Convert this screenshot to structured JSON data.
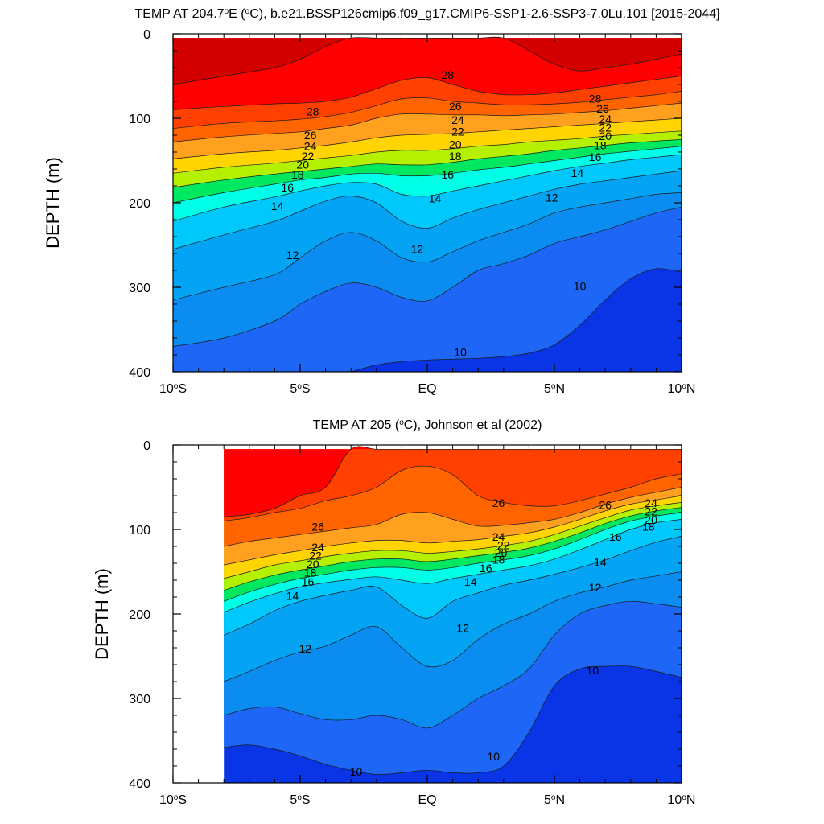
{
  "chart_data": [
    {
      "type": "heatmap",
      "title": "TEMP AT 204.7°E (°C), b.e21.BSSP126cmip6.f09_g17.CMIP6-SSP1-2.6-SSP3-7.0Lu.101 [2015-2044]",
      "title_parts": {
        "pre": "TEMP AT 204.7",
        "deg1": "o",
        "mid": "E (",
        "deg2": "o",
        "post": "C), b.e21.BSSP126cmip6.f09_g17.CMIP6-SSP1-2.6-SSP3-7.0Lu.101 [2015-2044]"
      },
      "ylabel": "DEPTH (m)",
      "xlim": [
        -10,
        10
      ],
      "ylim": [
        0,
        400
      ],
      "y_reversed": true,
      "x_ticks": [
        {
          "v": -10,
          "num": "10",
          "hemi": "S"
        },
        {
          "v": -5,
          "num": "5",
          "hemi": "S"
        },
        {
          "v": 0,
          "num": "EQ",
          "hemi": ""
        },
        {
          "v": 5,
          "num": "5",
          "hemi": "N"
        },
        {
          "v": 10,
          "num": "10",
          "hemi": "N"
        }
      ],
      "y_ticks": [
        "0",
        "100",
        "200",
        "300",
        "400"
      ],
      "data_x_range": [
        -10,
        10
      ],
      "data_depth_top": 5,
      "levels": [
        8,
        9,
        10,
        11,
        12,
        13,
        14,
        15,
        16,
        17,
        18,
        19,
        20,
        21,
        22,
        23,
        24,
        25,
        26,
        27,
        28,
        29,
        30
      ],
      "isotherms_depth": {
        "lat": [
          -10,
          -8,
          -6,
          -5,
          -4,
          -3,
          -2,
          -1,
          0,
          1,
          2,
          3,
          4,
          5,
          6,
          7,
          8,
          9,
          10
        ],
        "t10": [
          460,
          458,
          440,
          420,
          410,
          400,
          392,
          388,
          386,
          385,
          384,
          382,
          378,
          368,
          345,
          315,
          290,
          278,
          282
        ],
        "t11": [
          370,
          360,
          340,
          320,
          305,
          295,
          300,
          312,
          316,
          300,
          280,
          272,
          262,
          248,
          240,
          232,
          222,
          212,
          205
        ],
        "t12": [
          315,
          300,
          285,
          265,
          245,
          235,
          245,
          265,
          270,
          258,
          245,
          235,
          225,
          212,
          205,
          200,
          195,
          190,
          188
        ],
        "t14": [
          255,
          238,
          222,
          210,
          198,
          192,
          200,
          222,
          230,
          218,
          208,
          200,
          192,
          184,
          178,
          174,
          170,
          166,
          162
        ],
        "t16": [
          222,
          205,
          193,
          186,
          180,
          176,
          178,
          190,
          192,
          186,
          180,
          174,
          168,
          162,
          157,
          153,
          149,
          146,
          143
        ],
        "t18": [
          200,
          188,
          178,
          173,
          170,
          166,
          165,
          168,
          168,
          165,
          161,
          158,
          154,
          150,
          146,
          142,
          139,
          136,
          133
        ],
        "t20": [
          182,
          173,
          166,
          163,
          160,
          157,
          154,
          155,
          155,
          152,
          148,
          145,
          142,
          138,
          135,
          132,
          129,
          127,
          125
        ],
        "t22": [
          165,
          158,
          153,
          150,
          147,
          144,
          140,
          138,
          138,
          136,
          133,
          131,
          128,
          126,
          124,
          121,
          119,
          117,
          115
        ],
        "t24": [
          148,
          142,
          138,
          135,
          132,
          128,
          123,
          120,
          119,
          118,
          116,
          114,
          112,
          110,
          108,
          106,
          104,
          102,
          100
        ],
        "t26": [
          128,
          122,
          118,
          116,
          112,
          108,
          100,
          95,
          95,
          96,
          96,
          97,
          96,
          95,
          93,
          91,
          88,
          85,
          82
        ],
        "t27": [
          112,
          106,
          103,
          101,
          98,
          93,
          85,
          77,
          76,
          80,
          82,
          84,
          84,
          83,
          81,
          78,
          75,
          72,
          68
        ],
        "t28": [
          90,
          86,
          83,
          82,
          80,
          75,
          65,
          55,
          52,
          60,
          68,
          72,
          72,
          70,
          66,
          62,
          58,
          54,
          50
        ],
        "t29": [
          60,
          50,
          40,
          30,
          15,
          5,
          5,
          5,
          5,
          5,
          5,
          5,
          20,
          36,
          44,
          40,
          36,
          30,
          24
        ]
      },
      "contour_labels": [
        {
          "text": "28",
          "lon": -4.5,
          "depth": 93
        },
        {
          "text": "26",
          "lon": -4.6,
          "depth": 121
        },
        {
          "text": "24",
          "lon": -4.6,
          "depth": 134
        },
        {
          "text": "22",
          "lon": -4.7,
          "depth": 146
        },
        {
          "text": "20",
          "lon": -4.9,
          "depth": 156
        },
        {
          "text": "18",
          "lon": -5.1,
          "depth": 168
        },
        {
          "text": "16",
          "lon": -5.5,
          "depth": 183
        },
        {
          "text": "14",
          "lon": -5.9,
          "depth": 205
        },
        {
          "text": "12",
          "lon": -5.3,
          "depth": 263
        },
        {
          "text": "28",
          "lon": 0.8,
          "depth": 50
        },
        {
          "text": "26",
          "lon": 1.1,
          "depth": 87
        },
        {
          "text": "24",
          "lon": 1.2,
          "depth": 103
        },
        {
          "text": "22",
          "lon": 1.2,
          "depth": 117
        },
        {
          "text": "20",
          "lon": 1.1,
          "depth": 132
        },
        {
          "text": "18",
          "lon": 1.1,
          "depth": 146
        },
        {
          "text": "16",
          "lon": 0.8,
          "depth": 168
        },
        {
          "text": "14",
          "lon": 0.3,
          "depth": 196
        },
        {
          "text": "12",
          "lon": -0.4,
          "depth": 256
        },
        {
          "text": "10",
          "lon": 1.3,
          "depth": 378
        },
        {
          "text": "28",
          "lon": 6.6,
          "depth": 78
        },
        {
          "text": "26",
          "lon": 6.9,
          "depth": 90
        },
        {
          "text": "24",
          "lon": 7.0,
          "depth": 102
        },
        {
          "text": "22",
          "lon": 7.0,
          "depth": 112
        },
        {
          "text": "20",
          "lon": 7.0,
          "depth": 122
        },
        {
          "text": "18",
          "lon": 6.8,
          "depth": 133
        },
        {
          "text": "16",
          "lon": 6.6,
          "depth": 147
        },
        {
          "text": "14",
          "lon": 5.9,
          "depth": 166
        },
        {
          "text": "12",
          "lon": 4.9,
          "depth": 195
        },
        {
          "text": "10",
          "lon": 6.0,
          "depth": 300
        }
      ]
    },
    {
      "type": "heatmap",
      "title": "TEMP AT 205 (°C), Johnson et al (2002)",
      "title_parts": {
        "pre": "TEMP AT 205 (",
        "deg1": "o",
        "mid": "",
        "deg2": "",
        "post": "C), Johnson et al (2002)"
      },
      "ylabel": "DEPTH (m)",
      "xlim": [
        -10,
        10
      ],
      "ylim": [
        0,
        400
      ],
      "y_reversed": true,
      "x_ticks": [
        {
          "v": -10,
          "num": "10",
          "hemi": "S"
        },
        {
          "v": -5,
          "num": "5",
          "hemi": "S"
        },
        {
          "v": 0,
          "num": "EQ",
          "hemi": ""
        },
        {
          "v": 5,
          "num": "5",
          "hemi": "N"
        },
        {
          "v": 10,
          "num": "10",
          "hemi": "N"
        }
      ],
      "y_ticks": [
        "0",
        "100",
        "200",
        "300",
        "400"
      ],
      "data_x_range": [
        -8,
        10
      ],
      "data_depth_top": 5,
      "levels": [
        8,
        9,
        10,
        11,
        12,
        13,
        14,
        15,
        16,
        17,
        18,
        19,
        20,
        21,
        22,
        23,
        24,
        25,
        26,
        27,
        28,
        29,
        30
      ],
      "isotherms_depth": {
        "lat": [
          -8,
          -7,
          -6,
          -5,
          -4,
          -3,
          -2,
          -1,
          0,
          1,
          2,
          3,
          4,
          5,
          6,
          7,
          8,
          9,
          10
        ],
        "t10": [
          358,
          355,
          360,
          368,
          378,
          385,
          390,
          388,
          385,
          388,
          388,
          380,
          340,
          285,
          265,
          262,
          262,
          268,
          275
        ],
        "t11": [
          320,
          312,
          310,
          318,
          325,
          325,
          320,
          325,
          335,
          320,
          300,
          285,
          265,
          225,
          200,
          190,
          185,
          188,
          192
        ],
        "t12": [
          280,
          268,
          255,
          245,
          238,
          225,
          215,
          240,
          262,
          255,
          230,
          212,
          200,
          185,
          175,
          168,
          160,
          155,
          150
        ],
        "t14": [
          225,
          212,
          196,
          185,
          178,
          172,
          168,
          190,
          205,
          185,
          175,
          166,
          160,
          153,
          145,
          136,
          125,
          115,
          108
        ],
        "t16": [
          198,
          186,
          176,
          168,
          163,
          159,
          156,
          160,
          164,
          158,
          153,
          148,
          143,
          135,
          124,
          112,
          100,
          92,
          88
        ],
        "t18": [
          185,
          174,
          165,
          158,
          153,
          148,
          145,
          145,
          148,
          145,
          140,
          136,
          131,
          123,
          112,
          100,
          90,
          84,
          80
        ],
        "t20": [
          172,
          162,
          154,
          148,
          143,
          138,
          135,
          135,
          138,
          135,
          131,
          127,
          122,
          114,
          104,
          93,
          84,
          78,
          74
        ],
        "t22": [
          158,
          150,
          142,
          137,
          132,
          128,
          125,
          125,
          128,
          126,
          123,
          119,
          114,
          106,
          96,
          86,
          77,
          72,
          68
        ],
        "t24": [
          142,
          136,
          130,
          125,
          120,
          116,
          113,
          113,
          116,
          114,
          112,
          108,
          104,
          97,
          88,
          78,
          70,
          65,
          60
        ],
        "t26": [
          120,
          114,
          110,
          106,
          102,
          98,
          94,
          82,
          80,
          88,
          96,
          95,
          92,
          88,
          80,
          70,
          62,
          56,
          50
        ],
        "t27": [
          90,
          86,
          80,
          75,
          66,
          60,
          50,
          30,
          25,
          35,
          60,
          68,
          72,
          72,
          66,
          58,
          50,
          40,
          34
        ],
        "t28": [
          85,
          82,
          75,
          60,
          50,
          5,
          5,
          5,
          5,
          5,
          5,
          5,
          5,
          5,
          5,
          5,
          5,
          5,
          5
        ]
      },
      "contour_labels": [
        {
          "text": "26",
          "lon": -4.3,
          "depth": 98
        },
        {
          "text": "24",
          "lon": -4.3,
          "depth": 122
        },
        {
          "text": "22",
          "lon": -4.4,
          "depth": 132
        },
        {
          "text": "20",
          "lon": -4.5,
          "depth": 142
        },
        {
          "text": "18",
          "lon": -4.6,
          "depth": 152
        },
        {
          "text": "16",
          "lon": -4.7,
          "depth": 163
        },
        {
          "text": "14",
          "lon": -5.3,
          "depth": 180
        },
        {
          "text": "12",
          "lon": -4.8,
          "depth": 242
        },
        {
          "text": "26",
          "lon": 2.8,
          "depth": 70
        },
        {
          "text": "24",
          "lon": 2.8,
          "depth": 110
        },
        {
          "text": "22",
          "lon": 3.0,
          "depth": 120
        },
        {
          "text": "20",
          "lon": 2.9,
          "depth": 129
        },
        {
          "text": "18",
          "lon": 2.8,
          "depth": 137
        },
        {
          "text": "16",
          "lon": 2.3,
          "depth": 147
        },
        {
          "text": "14",
          "lon": 1.7,
          "depth": 163
        },
        {
          "text": "12",
          "lon": 1.4,
          "depth": 218
        },
        {
          "text": "10",
          "lon": 2.6,
          "depth": 370
        },
        {
          "text": "10",
          "lon": -2.8,
          "depth": 388
        },
        {
          "text": "26",
          "lon": 7.0,
          "depth": 72
        },
        {
          "text": "24",
          "lon": 8.8,
          "depth": 70
        },
        {
          "text": "22",
          "lon": 8.8,
          "depth": 80
        },
        {
          "text": "20",
          "lon": 8.8,
          "depth": 90
        },
        {
          "text": "18",
          "lon": 8.7,
          "depth": 98
        },
        {
          "text": "16",
          "lon": 7.4,
          "depth": 110
        },
        {
          "text": "14",
          "lon": 6.8,
          "depth": 140
        },
        {
          "text": "12",
          "lon": 6.6,
          "depth": 170
        },
        {
          "text": "10",
          "lon": 6.5,
          "depth": 268
        }
      ]
    }
  ],
  "colors": {
    "bands": [
      "#0000c8",
      "#0a35e6",
      "#1e66f5",
      "#0a8cf0",
      "#04a3f3",
      "#00b8f7",
      "#00c8fb",
      "#00dcff",
      "#00ffe7",
      "#00f6a0",
      "#00e860",
      "#00ee3a",
      "#b4f000",
      "#ffff00",
      "#ffd400",
      "#ffb300",
      "#ffa01e",
      "#f48200",
      "#ff6400",
      "#ff4000",
      "#ff0000",
      "#d40000"
    ],
    "contour_line": "#1a1a1a",
    "axis": "#000000",
    "background": "#ffffff"
  }
}
